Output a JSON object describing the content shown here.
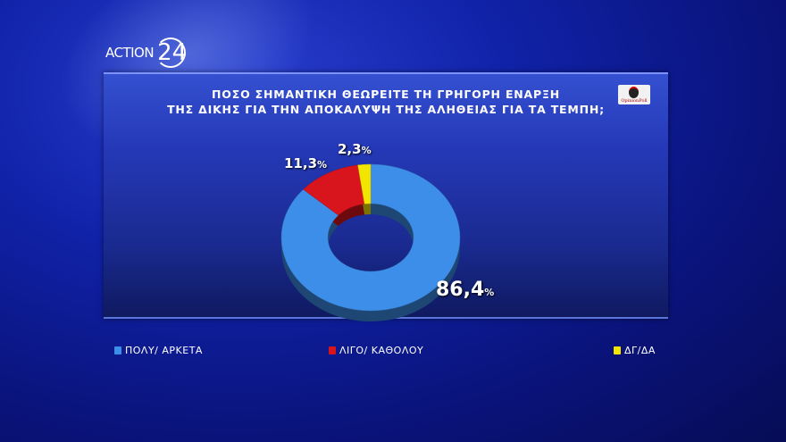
{
  "channel": {
    "logo_text": "ACTION",
    "logo_number": "24"
  },
  "pollster": "OpinionPoll",
  "chart_data": {
    "type": "pie",
    "style": "donut",
    "title": [
      "ΠΟΣΟ ΣΗΜΑΝΤΙΚΗ ΘΕΩΡΕΙΤΕ ΤΗ ΓΡΗΓΟΡΗ ΕΝΑΡΞΗ",
      "ΤΗΣ ΔΙΚΗΣ ΓΙΑ ΤΗΝ ΑΠΟΚΑΛΥΨΗ ΤΗΣ ΑΛΗΘΕΙΑΣ ΓΙΑ ΤΑ ΤΕΜΠΗ;"
    ],
    "legend_position": "bottom",
    "slices": [
      {
        "name": "ΠΟΛΥ/  ΑΡΚΕΤΑ",
        "value": 86.4,
        "label": "86,4",
        "color": "#3d8ee8"
      },
      {
        "name": "ΛΙΓΟ/  ΚΑΘΟΛΟΥ",
        "value": 11.3,
        "label": "11,3",
        "color": "#d8141c"
      },
      {
        "name": "ΔΓ/ΔΑ",
        "value": 2.3,
        "label": "2,3",
        "color": "#f2e600"
      }
    ],
    "unit": "%"
  }
}
